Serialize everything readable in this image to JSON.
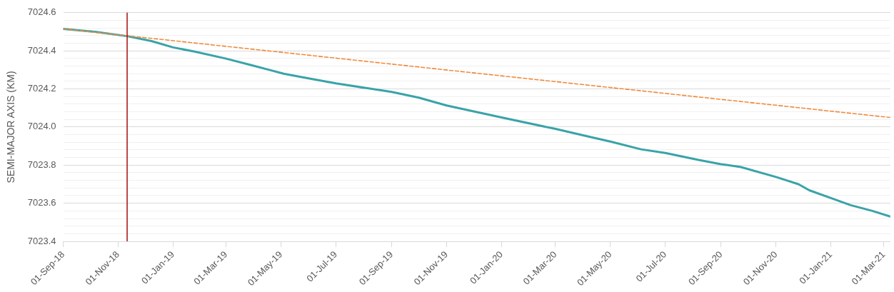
{
  "chart_data": {
    "type": "line",
    "ylabel": "SEMI-MAJOR AXIS (KM)",
    "xlim": [
      "2018-09-01",
      "2021-03-08"
    ],
    "xticks": [
      {
        "value": "2018-09-01",
        "label": "01-Sep-18"
      },
      {
        "value": "2018-11-01",
        "label": "01-Nov-18"
      },
      {
        "value": "2019-01-01",
        "label": "01-Jan-19"
      },
      {
        "value": "2019-03-01",
        "label": "01-Mar-19"
      },
      {
        "value": "2019-05-01",
        "label": "01-May-19"
      },
      {
        "value": "2019-07-01",
        "label": "01-Jul-19"
      },
      {
        "value": "2019-09-01",
        "label": "01-Sep-19"
      },
      {
        "value": "2019-11-01",
        "label": "01-Nov-19"
      },
      {
        "value": "2020-01-01",
        "label": "01-Jan-20"
      },
      {
        "value": "2020-03-01",
        "label": "01-Mar-20"
      },
      {
        "value": "2020-05-01",
        "label": "01-May-20"
      },
      {
        "value": "2020-07-01",
        "label": "01-Jul-20"
      },
      {
        "value": "2020-09-01",
        "label": "01-Sep-20"
      },
      {
        "value": "2020-11-01",
        "label": "01-Nov-20"
      },
      {
        "value": "2021-01-01",
        "label": "01-Jan-21"
      },
      {
        "value": "2021-03-01",
        "label": "01-Mar-21"
      }
    ],
    "ylim": [
      7023.4,
      7024.6
    ],
    "yticks": [
      7023.4,
      {
        "value": 7023.44,
        "label": null
      },
      {
        "value": 7023.48,
        "label": null
      },
      {
        "value": 7023.52,
        "label": null
      },
      {
        "value": 7023.56,
        "label": null
      },
      7023.6,
      {
        "value": 7023.64,
        "label": null
      },
      {
        "value": 7023.68,
        "label": null
      },
      {
        "value": 7023.72,
        "label": null
      },
      {
        "value": 7023.76,
        "label": null
      },
      7023.8,
      {
        "value": 7023.84,
        "label": null
      },
      {
        "value": 7023.88,
        "label": null
      },
      {
        "value": 7023.92,
        "label": null
      },
      {
        "value": 7023.96,
        "label": null
      },
      {
        "value": 7024,
        "label": "7024.0"
      },
      {
        "value": 7024.04,
        "label": null
      },
      {
        "value": 7024.08,
        "label": null
      },
      {
        "value": 7024.12,
        "label": null
      },
      {
        "value": 7024.16,
        "label": null
      },
      7024.2,
      {
        "value": 7024.24,
        "label": null
      },
      {
        "value": 7024.28,
        "label": null
      },
      {
        "value": 7024.32,
        "label": null
      },
      {
        "value": 7024.36,
        "label": null
      },
      7024.4,
      {
        "value": 7024.44,
        "label": null
      },
      {
        "value": 7024.48,
        "label": null
      },
      {
        "value": 7024.52,
        "label": null
      },
      {
        "value": 7024.56,
        "label": null
      },
      7024.6
    ],
    "grid": "y",
    "marker": "none",
    "legend": false,
    "ref_lines": [
      {
        "axis": "x",
        "value": "2018-11-11",
        "color": "#a50d0d"
      }
    ],
    "series": [
      {
        "color": "#3aa3a8",
        "x": [
          "2018-09-01",
          "2018-10-06",
          "2018-11-11",
          "2018-12-08",
          "2019-01-01",
          "2019-01-25",
          "2019-03-01",
          "2019-03-29",
          "2019-04-18",
          "2019-05-04",
          "2019-05-24",
          "2019-07-01",
          "2019-09-01",
          "2019-10-01",
          "2019-11-01",
          "2020-01-01",
          "2020-03-01",
          "2020-04-10",
          "2020-05-01",
          "2020-06-04",
          "2020-07-01",
          "2020-08-07",
          "2020-09-01",
          "2020-09-23",
          "2020-11-01",
          "2020-11-26",
          "2020-12-08",
          "2021-01-01",
          "2021-01-23",
          "2021-02-16",
          "2021-03-08"
        ],
        "values": [
          7024.515,
          7024.5,
          7024.477,
          7024.451,
          7024.418,
          7024.396,
          7024.359,
          7024.325,
          7024.3,
          7024.28,
          7024.262,
          7024.229,
          7024.184,
          7024.154,
          7024.113,
          7024.05,
          7023.99,
          7023.946,
          7023.924,
          7023.883,
          7023.864,
          7023.827,
          7023.805,
          7023.79,
          7023.738,
          7023.7,
          7023.668,
          7023.627,
          7023.59,
          7023.56,
          7023.53
        ]
      },
      {
        "color": "#f08a3c",
        "line_style": "dashed",
        "x": [
          "2018-09-01",
          "2021-03-08"
        ],
        "values": [
          7024.515,
          7024.05
        ]
      }
    ]
  }
}
